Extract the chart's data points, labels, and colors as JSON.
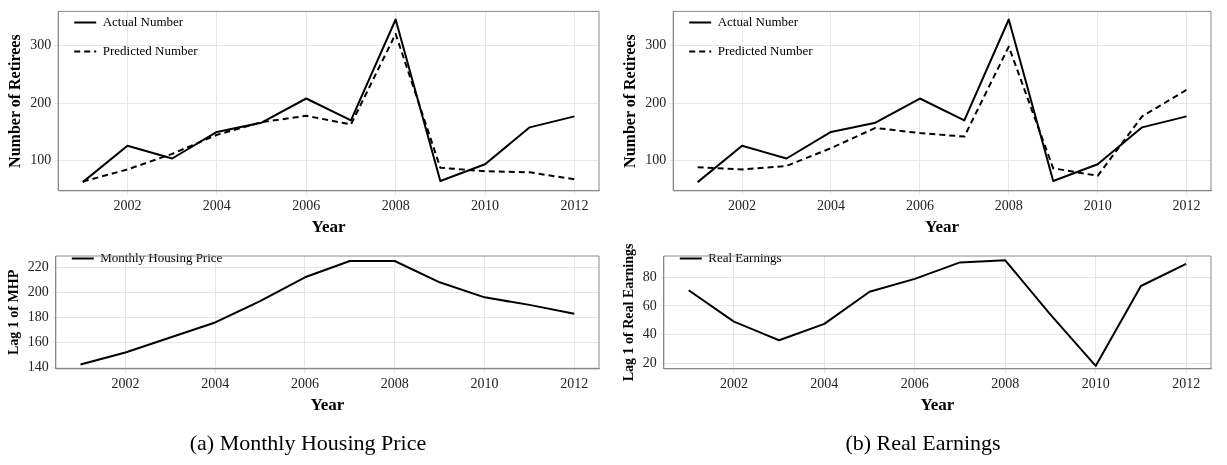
{
  "chart_data": [
    {
      "type": "line",
      "xlabel": "Year",
      "ylabel": "Number of Retirees",
      "x": [
        2001,
        2002,
        2003,
        2004,
        2005,
        2006,
        2007,
        2008,
        2009,
        2010,
        2011,
        2012
      ],
      "series": [
        {
          "name": "Actual Number",
          "color": "#000000",
          "line_style": "solid",
          "values": [
            63,
            126,
            104,
            150,
            166,
            208,
            170,
            345,
            65,
            94,
            158,
            177
          ]
        },
        {
          "name": "Predicted Number",
          "color": "#000000",
          "line_style": "dashed",
          "values": [
            64,
            85,
            112,
            145,
            167,
            178,
            163,
            320,
            88,
            82,
            80,
            68
          ]
        }
      ],
      "xlim": [
        2000.45,
        2012.55
      ],
      "xticks": [
        2002,
        2004,
        2006,
        2008,
        2010,
        2012
      ],
      "ylim": [
        48,
        359
      ],
      "yticks": [
        100,
        200,
        300
      ],
      "grid": true,
      "legend": "top left",
      "marker": "none"
    },
    {
      "type": "line",
      "xlabel": "Year",
      "ylabel": "Number of Retirees",
      "x": [
        2001,
        2002,
        2003,
        2004,
        2005,
        2006,
        2007,
        2008,
        2009,
        2010,
        2011,
        2012
      ],
      "series": [
        {
          "name": "Actual Number",
          "color": "#000000",
          "line_style": "solid",
          "values": [
            63,
            126,
            104,
            150,
            166,
            208,
            170,
            345,
            65,
            94,
            158,
            177
          ]
        },
        {
          "name": "Predicted Number",
          "color": "#000000",
          "line_style": "dashed",
          "values": [
            89,
            85,
            91,
            122,
            157,
            148,
            142,
            298,
            87,
            74,
            177,
            223
          ]
        }
      ],
      "xlim": [
        2000.45,
        2012.55
      ],
      "xticks": [
        2002,
        2004,
        2006,
        2008,
        2010,
        2012
      ],
      "ylim": [
        48,
        359
      ],
      "yticks": [
        100,
        200,
        300
      ],
      "grid": true,
      "legend": "top left",
      "marker": "none"
    },
    {
      "type": "line",
      "xlabel": "Year",
      "ylabel": "Lag 1 of MHP",
      "x": [
        2001,
        2002,
        2003,
        2004,
        2005,
        2006,
        2007,
        2008,
        2009,
        2010,
        2011,
        2012
      ],
      "series": [
        {
          "name": "Monthly Housing Price",
          "color": "#000000",
          "line_style": "solid",
          "values": [
            142.5,
            152,
            164,
            176,
            193,
            212,
            225,
            225,
            208,
            196,
            190,
            183
          ]
        }
      ],
      "xlim": [
        2000.45,
        2012.55
      ],
      "xticks": [
        2002,
        2004,
        2006,
        2008,
        2010,
        2012
      ],
      "ylim": [
        139,
        229
      ],
      "yticks": [
        140,
        160,
        180,
        200,
        220
      ],
      "grid": true,
      "legend": "top left",
      "marker": "none",
      "annotations": [
        "(a) Monthly Housing Price"
      ]
    },
    {
      "type": "line",
      "xlabel": "Year",
      "ylabel": "Lag 1 of Real Earnings",
      "x": [
        2001,
        2002,
        2003,
        2004,
        2005,
        2006,
        2007,
        2008,
        2009,
        2010,
        2011,
        2012
      ],
      "series": [
        {
          "name": "Real Earnings",
          "color": "#000000",
          "line_style": "solid",
          "values": [
            71,
            49,
            36,
            47.5,
            70,
            79,
            90.5,
            92,
            54,
            18,
            74,
            89.5
          ]
        }
      ],
      "xlim": [
        2000.45,
        2012.55
      ],
      "xticks": [
        2002,
        2004,
        2006,
        2008,
        2010,
        2012
      ],
      "ylim": [
        16,
        95
      ],
      "yticks": [
        20,
        40,
        60,
        80
      ],
      "grid": true,
      "legend": "top left",
      "marker": "none",
      "annotations": [
        "(b) Real Earnings"
      ]
    }
  ]
}
